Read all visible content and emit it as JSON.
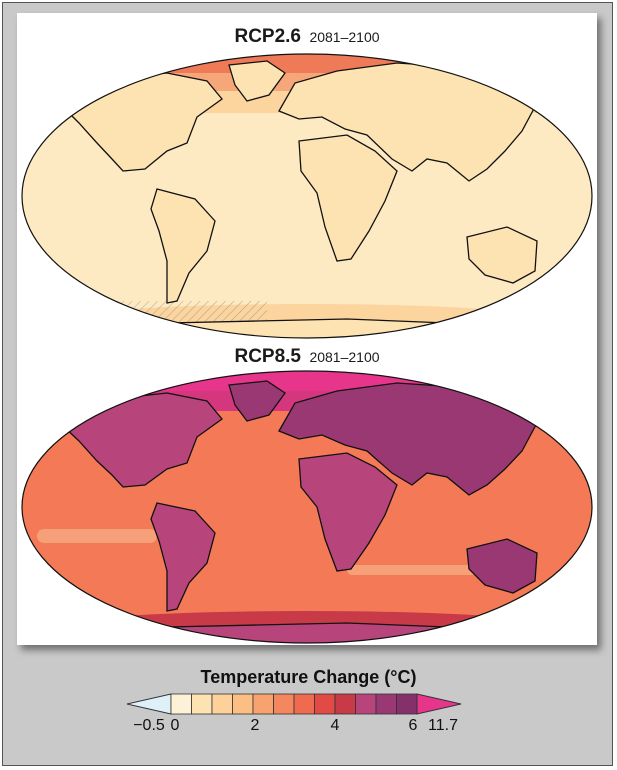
{
  "maps": [
    {
      "scenario": "RCP2.6",
      "period": "2081–2100",
      "colors": {
        "ocean": "#fde9c2",
        "ocean_warm": "#fbd49e",
        "land": "#fde3b2",
        "arctic": "#f6a77a",
        "arctic_hot": "#ee7a58"
      }
    },
    {
      "scenario": "RCP8.5",
      "period": "2081–2100",
      "colors": {
        "ocean": "#f47a57",
        "ocean_warm": "#f6a07a",
        "land": "#b7457c",
        "land_dark": "#9a3873",
        "arctic": "#d5377f",
        "arctic_hot": "#e8358c"
      }
    }
  ],
  "legend": {
    "title": "Temperature Change (°C)",
    "tick_labels": [
      "−0.5",
      "0",
      "2",
      "4",
      "6",
      "11.7"
    ],
    "under_color": "#dff1f8",
    "bin_colors": [
      "#fef2d6",
      "#fde3b2",
      "#fcd29a",
      "#fbbf83",
      "#f8a36f",
      "#f5875e",
      "#ef6a4e",
      "#e24b45",
      "#c93a48",
      "#b7457c",
      "#9a3873",
      "#863069"
    ],
    "over_color": "#e8358c"
  }
}
